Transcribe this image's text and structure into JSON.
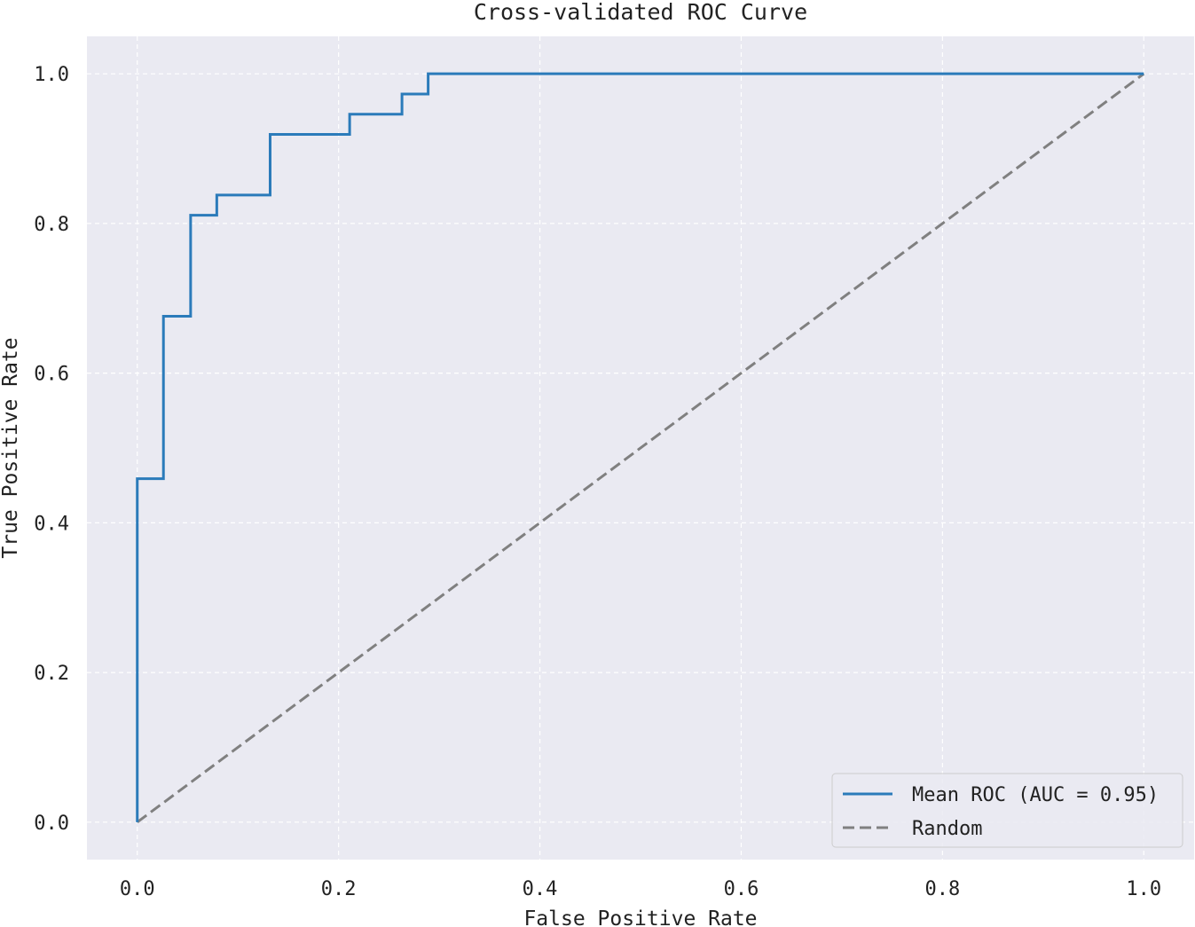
{
  "chart_data": {
    "type": "line",
    "title": "Cross-validated ROC Curve",
    "xlabel": "False Positive Rate",
    "ylabel": "True Positive Rate",
    "xlim": [
      -0.05,
      1.05
    ],
    "ylim": [
      -0.05,
      1.05
    ],
    "xticks": [
      {
        "value": 0.0,
        "label": "0.0"
      },
      {
        "value": 0.2,
        "label": "0.2"
      },
      {
        "value": 0.4,
        "label": "0.4"
      },
      {
        "value": 0.6,
        "label": "0.6"
      },
      {
        "value": 0.8,
        "label": "0.8"
      },
      {
        "value": 1.0,
        "label": "1.0"
      }
    ],
    "yticks": [
      {
        "value": 0.0,
        "label": "0.0"
      },
      {
        "value": 0.2,
        "label": "0.2"
      },
      {
        "value": 0.4,
        "label": "0.4"
      },
      {
        "value": 0.6,
        "label": "0.6"
      },
      {
        "value": 0.8,
        "label": "0.8"
      },
      {
        "value": 1.0,
        "label": "1.0"
      }
    ],
    "grid": true,
    "background": "#eaeaf2",
    "legend_position": "lower-right",
    "series": [
      {
        "name": "Mean ROC (AUC = 0.95)",
        "color": "#2b7bba",
        "dash": "solid",
        "x": [
          0.0,
          0.0,
          0.026,
          0.026,
          0.053,
          0.053,
          0.079,
          0.079,
          0.132,
          0.132,
          0.211,
          0.211,
          0.263,
          0.263,
          0.289,
          0.289,
          1.0
        ],
        "y": [
          0.0,
          0.459,
          0.459,
          0.676,
          0.676,
          0.811,
          0.811,
          0.838,
          0.838,
          0.919,
          0.919,
          0.946,
          0.946,
          0.973,
          0.973,
          1.0,
          1.0
        ]
      },
      {
        "name": "Random",
        "color": "#808080",
        "dash": "dashed",
        "x": [
          0.0,
          1.0
        ],
        "y": [
          0.0,
          1.0
        ]
      }
    ]
  }
}
